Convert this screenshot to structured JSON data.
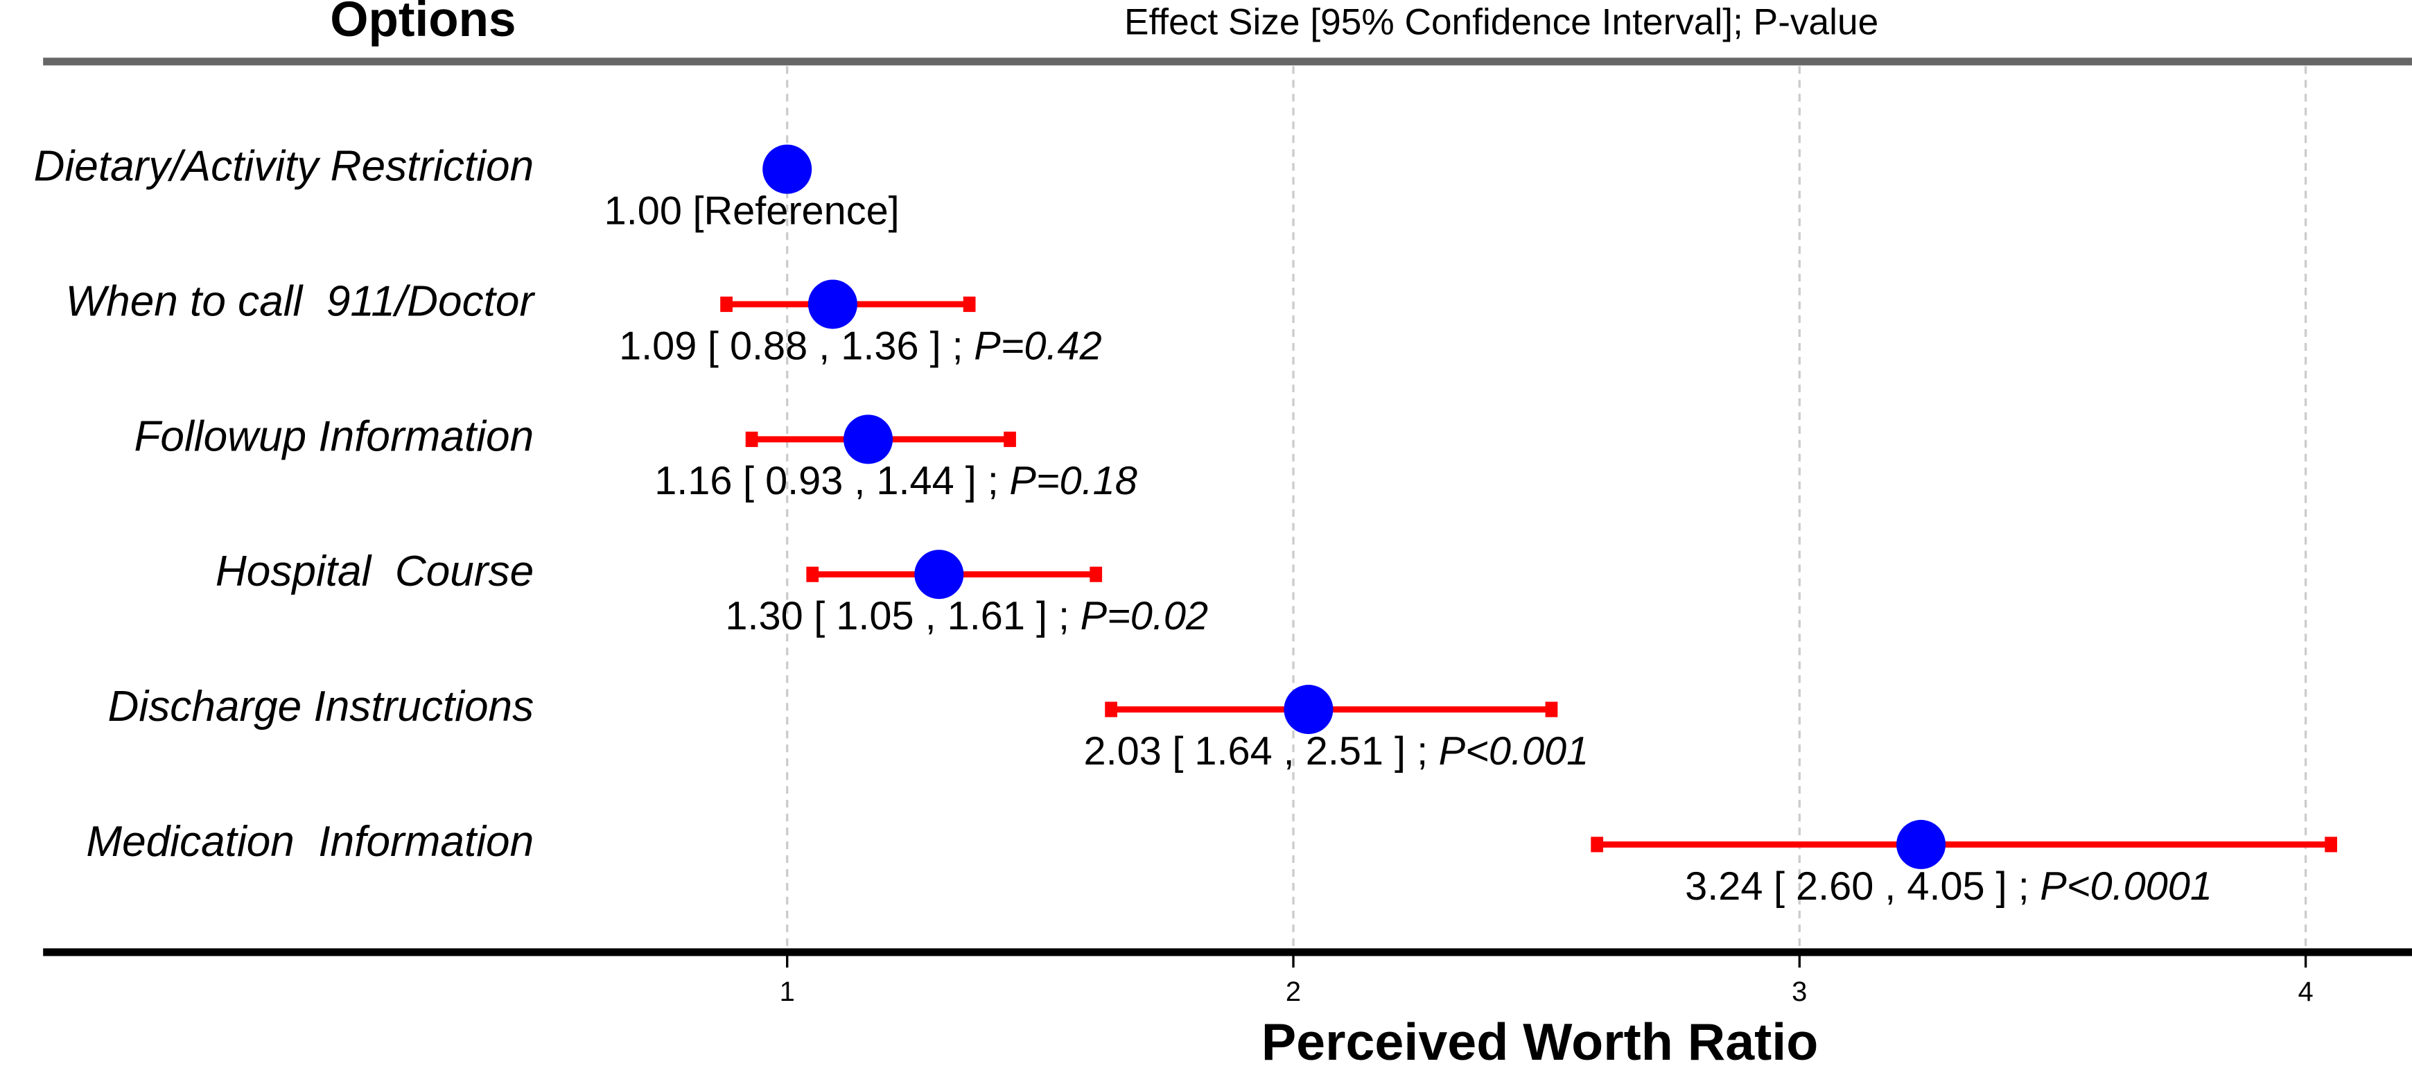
{
  "chart_data": {
    "type": "forest",
    "column_headers": [
      "Options",
      "Effect Size [95% Confidence Interval]; P-value"
    ],
    "x_label": "Perceived Worth Ratio",
    "categories": [
      "Dietary/Activity Restriction",
      "When to call  911/Doctor",
      "Followup Information",
      "Hospital  Course",
      "Discharge Instructions",
      "Medication  Information"
    ],
    "values": [
      1.0,
      1.09,
      1.16,
      1.3,
      2.03,
      3.24
    ],
    "value_labels": [
      "1.00",
      "1.09",
      "1.16",
      "1.30",
      "2.03",
      "3.24"
    ],
    "lower": [
      null,
      0.88,
      0.93,
      1.05,
      1.64,
      2.6
    ],
    "upper": [
      null,
      1.36,
      1.44,
      1.61,
      2.51,
      4.05
    ],
    "interval_labels": [
      null,
      "[ 0.88 , 1.36 ] ;",
      "[ 0.93 , 1.44 ] ;",
      "[ 1.05 , 1.61 ] ;",
      "[ 1.64 , 2.51 ] ;",
      "[ 2.60 , 4.05 ] ;"
    ],
    "p_values": [
      null,
      "P=0.42",
      "P=0.18",
      "P=0.02",
      "P<0.001",
      "P<0.0001"
    ],
    "reference_label": "[Reference]",
    "xlim": [
      -0.47,
      4.21
    ],
    "xticks": [
      1,
      2,
      3,
      4
    ],
    "grid": true,
    "point_color": "#0000ff",
    "interval_color": "#ff0000"
  }
}
